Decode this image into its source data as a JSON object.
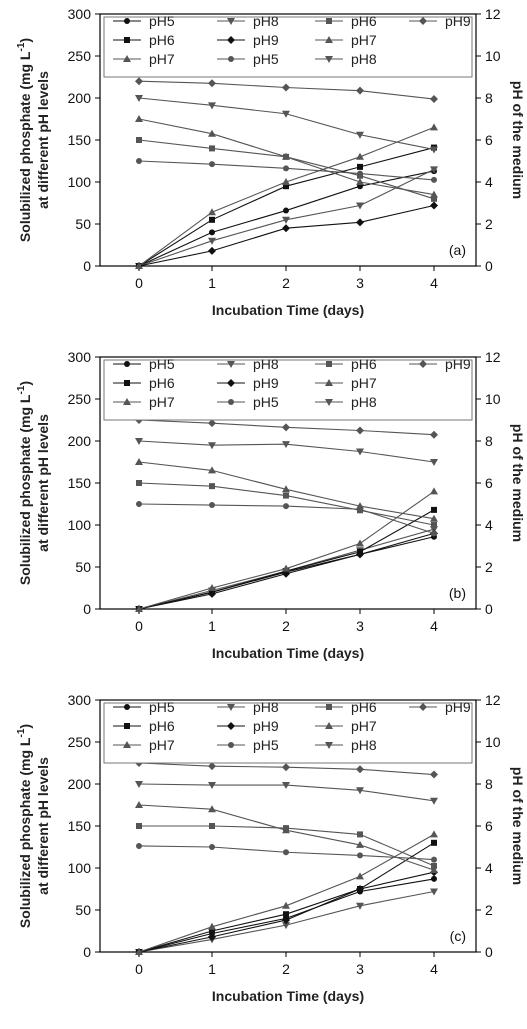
{
  "axes": {
    "xlabel": "Incubation Time (days)",
    "ylabel_line1": "Solubilized phosphate (mg L",
    "ylabel_sup": "-1",
    "ylabel_close": ")",
    "ylabel_line2": "at different pH levels",
    "y2label": "pH of the medium",
    "x_ticks": [
      "0",
      "1",
      "2",
      "3",
      "4"
    ],
    "y_ticks": [
      "0",
      "50",
      "100",
      "150",
      "200",
      "250",
      "300"
    ],
    "y2_ticks": [
      "0",
      "2",
      "4",
      "6",
      "8",
      "10",
      "12"
    ]
  },
  "legend_rows": [
    [
      "pH5",
      "pH8",
      "pH6",
      "pH9"
    ],
    [
      "pH6",
      "pH9",
      "pH7"
    ],
    [
      "pH7",
      "pH5",
      "pH8"
    ]
  ],
  "colors": {
    "series_dark": "#111111",
    "series_grey": "#555555",
    "axis": "#000000"
  },
  "chart_data": [
    {
      "type": "line",
      "panel_label": "(a)",
      "xlabel": "Incubation Time (days)",
      "ylabel": "Solubilized phosphate (mg L-1) at different pH levels",
      "y2label": "pH of the medium",
      "x": [
        0,
        1,
        2,
        3,
        4
      ],
      "ylim": [
        0,
        300
      ],
      "y2lim": [
        0,
        12
      ],
      "legend_position": "top",
      "series": [
        {
          "name": "pH5",
          "axis": "left",
          "marker": "circle",
          "values": [
            0,
            40,
            66,
            95,
            113
          ]
        },
        {
          "name": "pH8",
          "axis": "left",
          "marker": "triangle-down",
          "values": [
            0,
            30,
            55,
            72,
            115
          ]
        },
        {
          "name": "pH6",
          "axis": "right",
          "marker": "square",
          "values": [
            6.0,
            5.6,
            5.2,
            4.3,
            3.2
          ]
        },
        {
          "name": "pH9",
          "axis": "right",
          "marker": "diamond",
          "values": [
            8.8,
            8.7,
            8.5,
            8.35,
            7.95
          ]
        },
        {
          "name": "pH6",
          "axis": "left",
          "marker": "square",
          "values": [
            0,
            55,
            95,
            118,
            141
          ]
        },
        {
          "name": "pH9",
          "axis": "left",
          "marker": "diamond",
          "values": [
            0,
            18,
            45,
            52,
            72
          ]
        },
        {
          "name": "pH7",
          "axis": "right",
          "marker": "triangle-up",
          "values": [
            7.0,
            6.3,
            5.2,
            4.0,
            3.4
          ]
        },
        {
          "name": "pH7",
          "axis": "left",
          "marker": "triangle-up",
          "values": [
            0,
            64,
            100,
            130,
            165
          ]
        },
        {
          "name": "pH5",
          "axis": "right",
          "marker": "circle",
          "values": [
            5.0,
            4.85,
            4.65,
            4.4,
            4.1
          ]
        },
        {
          "name": "pH8",
          "axis": "right",
          "marker": "triangle-down",
          "values": [
            8.0,
            7.65,
            7.25,
            6.25,
            5.55
          ]
        }
      ]
    },
    {
      "type": "line",
      "panel_label": "(b)",
      "xlabel": "Incubation Time (days)",
      "ylabel": "Solubilized phosphate (mg L-1) at different pH levels",
      "y2label": "pH of the medium",
      "x": [
        0,
        1,
        2,
        3,
        4
      ],
      "ylim": [
        0,
        300
      ],
      "y2lim": [
        0,
        12
      ],
      "legend_position": "top",
      "series": [
        {
          "name": "pH5",
          "axis": "left",
          "marker": "circle",
          "values": [
            0,
            20,
            44,
            65,
            86
          ]
        },
        {
          "name": "pH8",
          "axis": "left",
          "marker": "triangle-down",
          "values": [
            0,
            22,
            45,
            70,
            95
          ]
        },
        {
          "name": "pH6",
          "axis": "right",
          "marker": "square",
          "values": [
            6.0,
            5.85,
            5.4,
            4.7,
            4.0
          ]
        },
        {
          "name": "pH9",
          "axis": "right",
          "marker": "diamond",
          "values": [
            9.0,
            8.85,
            8.65,
            8.5,
            8.3
          ]
        },
        {
          "name": "pH6",
          "axis": "left",
          "marker": "square",
          "values": [
            0,
            20,
            45,
            68,
            118
          ]
        },
        {
          "name": "pH9",
          "axis": "left",
          "marker": "diamond",
          "values": [
            0,
            18,
            42,
            65,
            90
          ]
        },
        {
          "name": "pH7",
          "axis": "right",
          "marker": "triangle-up",
          "values": [
            7.0,
            6.6,
            5.7,
            4.9,
            4.3
          ]
        },
        {
          "name": "pH7",
          "axis": "left",
          "marker": "triangle-up",
          "values": [
            0,
            25,
            48,
            78,
            140
          ]
        },
        {
          "name": "pH5",
          "axis": "right",
          "marker": "circle",
          "values": [
            5.0,
            4.95,
            4.9,
            4.75,
            3.6
          ]
        },
        {
          "name": "pH8",
          "axis": "right",
          "marker": "triangle-down",
          "values": [
            8.0,
            7.8,
            7.85,
            7.5,
            7.0
          ]
        }
      ]
    },
    {
      "type": "line",
      "panel_label": "(c)",
      "xlabel": "Incubation Time (days)",
      "ylabel": "Solubilized phosphate (mg L-1) at different pH levels",
      "y2label": "pH of the medium",
      "x": [
        0,
        1,
        2,
        3,
        4
      ],
      "ylim": [
        0,
        300
      ],
      "y2lim": [
        0,
        12
      ],
      "legend_position": "top",
      "series": [
        {
          "name": "pH5",
          "axis": "left",
          "marker": "circle",
          "values": [
            0,
            22,
            40,
            72,
            87
          ]
        },
        {
          "name": "pH8",
          "axis": "left",
          "marker": "triangle-down",
          "values": [
            0,
            15,
            32,
            55,
            72
          ]
        },
        {
          "name": "pH6",
          "axis": "right",
          "marker": "square",
          "values": [
            6.0,
            6.0,
            5.9,
            5.6,
            4.1
          ]
        },
        {
          "name": "pH9",
          "axis": "right",
          "marker": "diamond",
          "values": [
            9.0,
            8.85,
            8.8,
            8.7,
            8.45
          ]
        },
        {
          "name": "pH6",
          "axis": "left",
          "marker": "square",
          "values": [
            0,
            25,
            45,
            75,
            130
          ]
        },
        {
          "name": "pH9",
          "axis": "left",
          "marker": "diamond",
          "values": [
            0,
            18,
            38,
            75,
            95
          ]
        },
        {
          "name": "pH7",
          "axis": "right",
          "marker": "triangle-up",
          "values": [
            7.0,
            6.8,
            5.8,
            5.1,
            3.9
          ]
        },
        {
          "name": "pH7",
          "axis": "left",
          "marker": "triangle-up",
          "values": [
            0,
            30,
            55,
            90,
            140
          ]
        },
        {
          "name": "pH5",
          "axis": "right",
          "marker": "circle",
          "values": [
            5.05,
            5.0,
            4.75,
            4.6,
            4.4
          ]
        },
        {
          "name": "pH8",
          "axis": "right",
          "marker": "triangle-down",
          "values": [
            8.0,
            7.95,
            7.95,
            7.7,
            7.2
          ]
        }
      ]
    }
  ]
}
